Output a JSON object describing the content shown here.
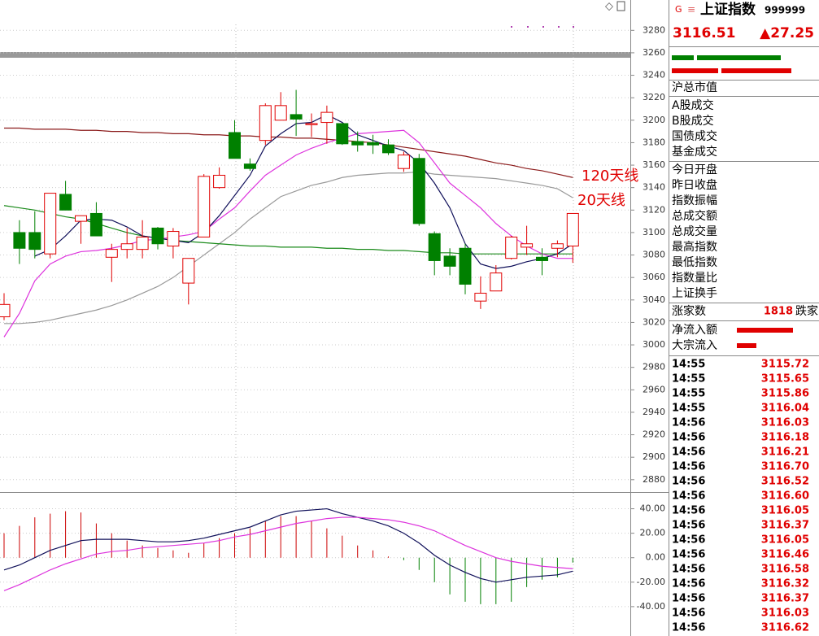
{
  "chart_data": [
    {
      "type": "candlestick",
      "open": [
        3025,
        3100,
        3100,
        3081,
        3134,
        3110,
        3117,
        3078,
        3085,
        3085,
        3104,
        3088,
        3055,
        3096,
        3140,
        3189,
        3161,
        3182,
        3200,
        3205,
        3196,
        3198,
        3197,
        3181,
        3180,
        3178,
        3157,
        3166,
        3099,
        3079,
        3086,
        3039,
        3048,
        3077,
        3087,
        3078,
        3086,
        3088
      ],
      "close": [
        3036,
        3086,
        3085,
        3135,
        3120,
        3115,
        3097,
        3085,
        3090,
        3096,
        3090,
        3101,
        3077,
        3150,
        3151,
        3166,
        3157,
        3213,
        3213,
        3201,
        3197,
        3207,
        3179,
        3178,
        3178,
        3171,
        3169,
        3108,
        3075,
        3070,
        3054,
        3046,
        3064,
        3096,
        3090,
        3075,
        3090,
        3117
      ],
      "high": [
        3046,
        3111,
        3119,
        3135,
        3146,
        3115,
        3127,
        3090,
        3104,
        3111,
        3105,
        3104,
        3077,
        3152,
        3158,
        3200,
        3166,
        3215,
        3225,
        3227,
        3206,
        3213,
        3197,
        3190,
        3187,
        3183,
        3172,
        3170,
        3101,
        3086,
        3090,
        3061,
        3071,
        3097,
        3106,
        3086,
        3093,
        3117
      ],
      "low": [
        3022,
        3072,
        3077,
        3077,
        3120,
        3090,
        3097,
        3056,
        3077,
        3077,
        3085,
        3077,
        3036,
        3096,
        3139,
        3166,
        3155,
        3178,
        3200,
        3186,
        3185,
        3179,
        3178,
        3172,
        3170,
        3169,
        3154,
        3106,
        3062,
        3062,
        3045,
        3032,
        3048,
        3076,
        3080,
        3062,
        3078,
        3073
      ],
      "series": [
        {
          "color": "#8b1a1a",
          "values": [
            3193,
            3193,
            3192,
            3192,
            3192,
            3191,
            3191,
            3190,
            3190,
            3189,
            3189,
            3188,
            3188,
            3187,
            3187,
            3186,
            3186,
            3185,
            3185,
            3184,
            3184,
            3183,
            3182,
            3181,
            3180,
            3178,
            3176,
            3174,
            3172,
            3170,
            3168,
            3165,
            3162,
            3160,
            3157,
            3155,
            3152,
            3149
          ]
        },
        {
          "color": "#999999",
          "values": [
            3019,
            3019,
            3020,
            3022,
            3025,
            3028,
            3031,
            3035,
            3040,
            3046,
            3052,
            3060,
            3070,
            3080,
            3090,
            3100,
            3112,
            3122,
            3132,
            3137,
            3142,
            3145,
            3149,
            3151,
            3152,
            3153,
            3153,
            3154,
            3152,
            3151,
            3150,
            3149,
            3148,
            3146,
            3144,
            3142,
            3139,
            3131
          ]
        },
        {
          "color": "#1a8a1a",
          "values": [
            3124,
            3122,
            3120,
            3117,
            3114,
            3112,
            3108,
            3104,
            3100,
            3097,
            3095,
            3093,
            3092,
            3091,
            3090,
            3089,
            3088,
            3088,
            3087,
            3087,
            3087,
            3086,
            3086,
            3085,
            3085,
            3084,
            3084,
            3083,
            3082,
            3082,
            3081,
            3081,
            3081,
            3081,
            3081,
            3081,
            3081,
            3081
          ]
        },
        {
          "color": "#dd33dd",
          "values": [
            3007,
            3028,
            3057,
            3072,
            3079,
            3083,
            3084,
            3086,
            3089,
            3093,
            3094,
            3096,
            3098,
            3101,
            3112,
            3122,
            3137,
            3151,
            3160,
            3169,
            3175,
            3180,
            3184,
            3188,
            3189,
            3190,
            3191,
            3180,
            3162,
            3144,
            3133,
            3122,
            3108,
            3097,
            3088,
            3081,
            3077,
            3077
          ]
        },
        {
          "color": "#10105a",
          "values": [
            null,
            null,
            3079,
            3085,
            3097,
            3111,
            3112,
            3111,
            3105,
            3097,
            3095,
            3093,
            3091,
            3100,
            3115,
            3133,
            3151,
            3177,
            3188,
            3197,
            3198,
            3205,
            3198,
            3187,
            3182,
            3177,
            3173,
            3162,
            3144,
            3122,
            3090,
            3072,
            3068,
            3070,
            3074,
            3077,
            3081,
            3090
          ]
        }
      ],
      "annotations": [
        "120天线",
        "20天线"
      ],
      "up_color": "#e00000",
      "down_color": "#008000",
      "ylim": [
        2869,
        3307
      ],
      "yticks": [
        2880,
        2900,
        2920,
        2940,
        2960,
        2980,
        3000,
        3020,
        3040,
        3060,
        3080,
        3100,
        3120,
        3140,
        3160,
        3180,
        3200,
        3220,
        3240,
        3260,
        3280
      ],
      "grid": true
    },
    {
      "type": "macd",
      "values": [
        20,
        26,
        33,
        36,
        38,
        37,
        28,
        20,
        14,
        10,
        8,
        6,
        4,
        12,
        16,
        20,
        24,
        30,
        34,
        34,
        30,
        24,
        18,
        10,
        6,
        1,
        -2,
        -10,
        -20,
        -30,
        -36,
        -38,
        -38,
        -36,
        -24,
        -18,
        -16,
        -4
      ],
      "series": [
        {
          "color": "#10105a",
          "values": [
            -10,
            -6,
            0,
            6,
            10,
            14,
            15,
            15,
            15,
            14,
            13,
            13,
            14,
            16,
            19,
            22,
            25,
            30,
            35,
            38,
            39,
            40,
            36,
            33,
            30,
            26,
            20,
            12,
            2,
            -6,
            -12,
            -17,
            -20,
            -18,
            -16,
            -15,
            -14,
            -11
          ]
        },
        {
          "color": "#dd33dd",
          "values": [
            -27,
            -22,
            -16,
            -10,
            -5,
            -1,
            3,
            5,
            6,
            8,
            9,
            10,
            11,
            12,
            14,
            17,
            19,
            22,
            25,
            28,
            30,
            32,
            33,
            33,
            32,
            31,
            29,
            26,
            22,
            16,
            10,
            5,
            0,
            -3,
            -5,
            -7,
            -8,
            -9
          ]
        }
      ],
      "up_color": "#cc0000",
      "down_color": "#008000",
      "ylim": [
        -64,
        53
      ],
      "yticks": [
        {
          "value": -40,
          "label": "-40.00"
        },
        {
          "value": -20,
          "label": "-20.00"
        },
        {
          "value": 0,
          "label": "0.00"
        },
        {
          "value": 20,
          "label": "20.00"
        },
        {
          "value": 40,
          "label": "40.00"
        }
      ],
      "grid": true
    }
  ],
  "sidebar": {
    "icons": [
      "G",
      "≡"
    ],
    "name": "上证指数",
    "code": "999999",
    "price": "3116.51",
    "change": "▲27.25",
    "groups": [
      [
        "沪总市值"
      ],
      [
        "A股成交",
        "B股成交",
        "国债成交",
        "基金成交"
      ],
      [
        "今日开盘",
        "昨日收盘",
        "指数振幅",
        "总成交额",
        "总成交量",
        "最高指数",
        "最低指数",
        "指数量比",
        "上证换手"
      ]
    ],
    "up_label": "涨家数",
    "up_count": "1818",
    "down_label": "跌家",
    "flows": [
      "净流入额",
      "大宗流入"
    ],
    "ticks": [
      [
        "14:55",
        "3115.72"
      ],
      [
        "14:55",
        "3115.65"
      ],
      [
        "14:55",
        "3115.86"
      ],
      [
        "14:55",
        "3116.04"
      ],
      [
        "14:56",
        "3116.03"
      ],
      [
        "14:56",
        "3116.18"
      ],
      [
        "14:56",
        "3116.21"
      ],
      [
        "14:56",
        "3116.70"
      ],
      [
        "14:56",
        "3116.52"
      ],
      [
        "14:56",
        "3116.60"
      ],
      [
        "14:56",
        "3116.05"
      ],
      [
        "14:56",
        "3116.37"
      ],
      [
        "14:56",
        "3116.05"
      ],
      [
        "14:56",
        "3116.46"
      ],
      [
        "14:56",
        "3116.58"
      ],
      [
        "14:56",
        "3116.32"
      ],
      [
        "14:56",
        "3116.37"
      ],
      [
        "14:56",
        "3116.03"
      ],
      [
        "14:56",
        "3116.62"
      ]
    ]
  }
}
